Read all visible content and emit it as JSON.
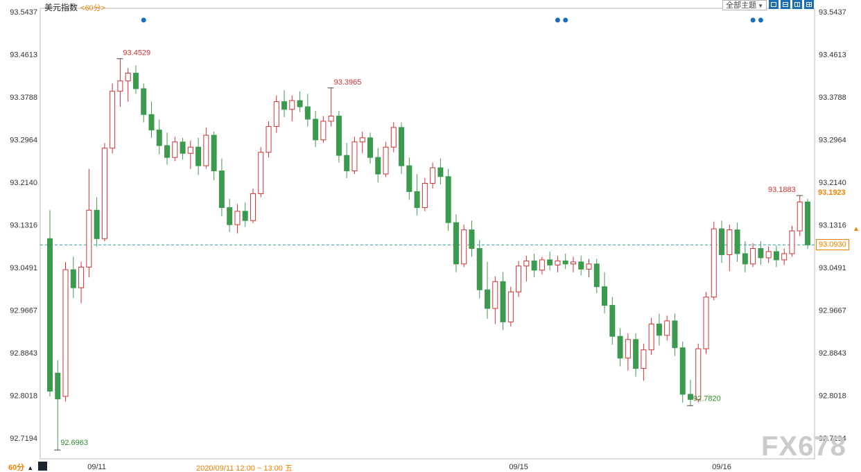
{
  "header": {
    "title": "美元指数",
    "period": "<60分>",
    "theme_dropdown_label": "全部主题",
    "theme_dropdown_arrow": "▼",
    "toolbar_icons": [
      "layout-single",
      "layout-split-h",
      "layout-split-v",
      "layout-grid"
    ]
  },
  "colors": {
    "up": "#cc3333",
    "down": "#3c9a4e",
    "accent_orange": "#f08100",
    "accent_blue": "#1b6fba",
    "dashed_line": "#2aa198",
    "axis_text": "#333333",
    "frame": "#b8b8b8",
    "annotation_high": "#cc3333",
    "annotation_low": "#2e8b2e"
  },
  "markers": {
    "current_price": "93.1923",
    "selected_price": "93.0930",
    "arrow": "▲"
  },
  "annotations": [
    {
      "label": "93.4529",
      "price": 93.4529,
      "index": 9,
      "type": "high",
      "align": "right"
    },
    {
      "label": "93.3965",
      "price": 93.3965,
      "index": 36,
      "type": "high",
      "align": "right"
    },
    {
      "label": "93.1883",
      "price": 93.1883,
      "index": 96,
      "type": "high",
      "align": "left"
    },
    {
      "label": "92.7820",
      "price": 92.782,
      "index": 82,
      "type": "low",
      "align": "right"
    },
    {
      "label": "92.6963",
      "price": 92.6963,
      "index": 1,
      "type": "low",
      "align": "right"
    }
  ],
  "footer": {
    "tab": "60分",
    "tab_arrow": "▲",
    "crosshair_info": "2020/09/11 12:00 ~ 13:00 五",
    "watermark": "FX678"
  },
  "chart_data": {
    "type": "candlestick",
    "title": "美元指数 60分",
    "ylim": [
      92.7194,
      93.5437
    ],
    "grid": false,
    "y_ticks": [
      "93.5437",
      "93.4613",
      "93.3788",
      "93.2964",
      "93.2140",
      "93.1316",
      "93.0491",
      "92.9667",
      "92.8843",
      "92.8018",
      "92.7194"
    ],
    "x_ticks": [
      {
        "label": "09/11",
        "index": 6
      },
      {
        "label": "09/15",
        "index": 60
      },
      {
        "label": "09/16",
        "index": 86
      }
    ],
    "event_dot_indices": [
      12,
      65,
      66,
      90,
      91
    ],
    "candles": [
      [
        93.105,
        93.16,
        92.8,
        92.81
      ],
      [
        92.845,
        92.87,
        92.6963,
        92.795
      ],
      [
        92.8,
        93.06,
        92.79,
        93.045
      ],
      [
        93.045,
        93.07,
        92.99,
        93.01
      ],
      [
        93.01,
        93.06,
        92.98,
        93.05
      ],
      [
        93.05,
        93.24,
        93.03,
        93.16
      ],
      [
        93.16,
        93.185,
        93.09,
        93.105
      ],
      [
        93.105,
        93.29,
        93.1,
        93.28
      ],
      [
        93.28,
        93.405,
        93.27,
        93.39
      ],
      [
        93.39,
        93.4529,
        93.36,
        93.41
      ],
      [
        93.41,
        93.435,
        93.37,
        93.425
      ],
      [
        93.425,
        93.44,
        93.385,
        93.395
      ],
      [
        93.395,
        93.405,
        93.33,
        93.345
      ],
      [
        93.345,
        93.37,
        93.3,
        93.315
      ],
      [
        93.315,
        93.335,
        93.268,
        93.285
      ],
      [
        93.285,
        93.31,
        93.248,
        93.262
      ],
      [
        93.262,
        93.302,
        93.255,
        93.292
      ],
      [
        93.292,
        93.3,
        93.258,
        93.27
      ],
      [
        93.27,
        93.295,
        93.24,
        93.282
      ],
      [
        93.282,
        93.3,
        93.228,
        93.246
      ],
      [
        93.246,
        93.32,
        93.24,
        93.305
      ],
      [
        93.305,
        93.312,
        93.218,
        93.236
      ],
      [
        93.236,
        93.26,
        93.148,
        93.165
      ],
      [
        93.165,
        93.182,
        93.118,
        93.132
      ],
      [
        93.132,
        93.172,
        93.115,
        93.158
      ],
      [
        93.158,
        93.175,
        93.128,
        93.14
      ],
      [
        93.14,
        93.202,
        93.135,
        93.192
      ],
      [
        93.192,
        93.282,
        93.185,
        93.272
      ],
      [
        93.272,
        93.332,
        93.262,
        93.322
      ],
      [
        93.322,
        93.382,
        93.31,
        93.37
      ],
      [
        93.37,
        93.392,
        93.34,
        93.355
      ],
      [
        93.355,
        93.382,
        93.332,
        93.372
      ],
      [
        93.372,
        93.39,
        93.35,
        93.36
      ],
      [
        93.36,
        93.385,
        93.322,
        93.336
      ],
      [
        93.336,
        93.352,
        93.282,
        93.296
      ],
      [
        93.296,
        93.342,
        93.29,
        93.332
      ],
      [
        93.332,
        93.3965,
        93.322,
        93.342
      ],
      [
        93.342,
        93.352,
        93.252,
        93.266
      ],
      [
        93.266,
        93.29,
        93.222,
        93.236
      ],
      [
        93.236,
        93.302,
        93.23,
        93.292
      ],
      [
        93.292,
        93.312,
        93.27,
        93.3
      ],
      [
        93.3,
        93.31,
        93.25,
        93.262
      ],
      [
        93.262,
        93.28,
        93.214,
        93.23
      ],
      [
        93.23,
        93.292,
        93.224,
        93.282
      ],
      [
        93.282,
        93.33,
        93.272,
        93.32
      ],
      [
        93.32,
        93.33,
        93.23,
        93.246
      ],
      [
        93.246,
        93.262,
        93.18,
        93.196
      ],
      [
        93.196,
        93.23,
        93.15,
        93.165
      ],
      [
        93.165,
        93.222,
        93.158,
        93.212
      ],
      [
        93.212,
        93.252,
        93.202,
        93.242
      ],
      [
        93.242,
        93.26,
        93.21,
        93.225
      ],
      [
        93.225,
        93.24,
        93.12,
        93.136
      ],
      [
        93.136,
        93.152,
        93.04,
        93.056
      ],
      [
        93.056,
        93.132,
        93.05,
        93.122
      ],
      [
        93.122,
        93.14,
        93.07,
        93.086
      ],
      [
        93.086,
        93.102,
        92.99,
        93.006
      ],
      [
        93.006,
        93.06,
        92.95,
        92.97
      ],
      [
        92.97,
        93.032,
        92.94,
        93.022
      ],
      [
        93.022,
        93.04,
        92.928,
        92.944
      ],
      [
        92.944,
        93.012,
        92.935,
        93.002
      ],
      [
        93.002,
        93.062,
        92.992,
        93.052
      ],
      [
        93.052,
        93.072,
        93.022,
        93.062
      ],
      [
        93.062,
        93.076,
        93.03,
        93.044
      ],
      [
        93.044,
        93.07,
        93.036,
        93.064
      ],
      [
        93.064,
        93.08,
        93.044,
        93.054
      ],
      [
        93.054,
        93.072,
        93.04,
        93.062
      ],
      [
        93.062,
        93.076,
        93.046,
        93.056
      ],
      [
        93.056,
        93.07,
        93.04,
        93.06
      ],
      [
        93.06,
        93.072,
        93.034,
        93.046
      ],
      [
        93.046,
        93.066,
        93.03,
        93.056
      ],
      [
        93.056,
        93.066,
        93.0,
        93.012
      ],
      [
        93.012,
        93.04,
        92.96,
        92.976
      ],
      [
        92.976,
        92.992,
        92.9,
        92.916
      ],
      [
        92.916,
        92.932,
        92.858,
        92.874
      ],
      [
        92.874,
        92.922,
        92.85,
        92.91
      ],
      [
        92.91,
        92.922,
        92.838,
        92.854
      ],
      [
        92.854,
        92.902,
        92.83,
        92.89
      ],
      [
        92.89,
        92.952,
        92.88,
        92.94
      ],
      [
        92.94,
        92.96,
        92.898,
        92.918
      ],
      [
        92.918,
        92.956,
        92.908,
        92.946
      ],
      [
        92.946,
        92.96,
        92.878,
        92.894
      ],
      [
        92.894,
        92.906,
        92.788,
        92.804
      ],
      [
        92.804,
        92.832,
        92.782,
        92.794
      ],
      [
        92.794,
        92.902,
        92.788,
        92.892
      ],
      [
        92.892,
        93.002,
        92.882,
        92.992
      ],
      [
        92.992,
        93.138,
        92.986,
        93.124
      ],
      [
        93.124,
        93.14,
        93.058,
        93.074
      ],
      [
        93.074,
        93.132,
        93.042,
        93.122
      ],
      [
        93.122,
        93.136,
        93.06,
        93.076
      ],
      [
        93.076,
        93.1,
        93.04,
        93.056
      ],
      [
        93.056,
        93.096,
        93.05,
        93.086
      ],
      [
        93.086,
        93.1,
        93.054,
        93.068
      ],
      [
        93.068,
        93.09,
        93.058,
        93.08
      ],
      [
        93.08,
        93.092,
        93.05,
        93.064
      ],
      [
        93.064,
        93.086,
        93.054,
        93.076
      ],
      [
        93.076,
        93.13,
        93.07,
        93.12
      ],
      [
        93.12,
        93.1883,
        93.11,
        93.176
      ],
      [
        93.176,
        93.182,
        93.085,
        93.093
      ]
    ]
  }
}
